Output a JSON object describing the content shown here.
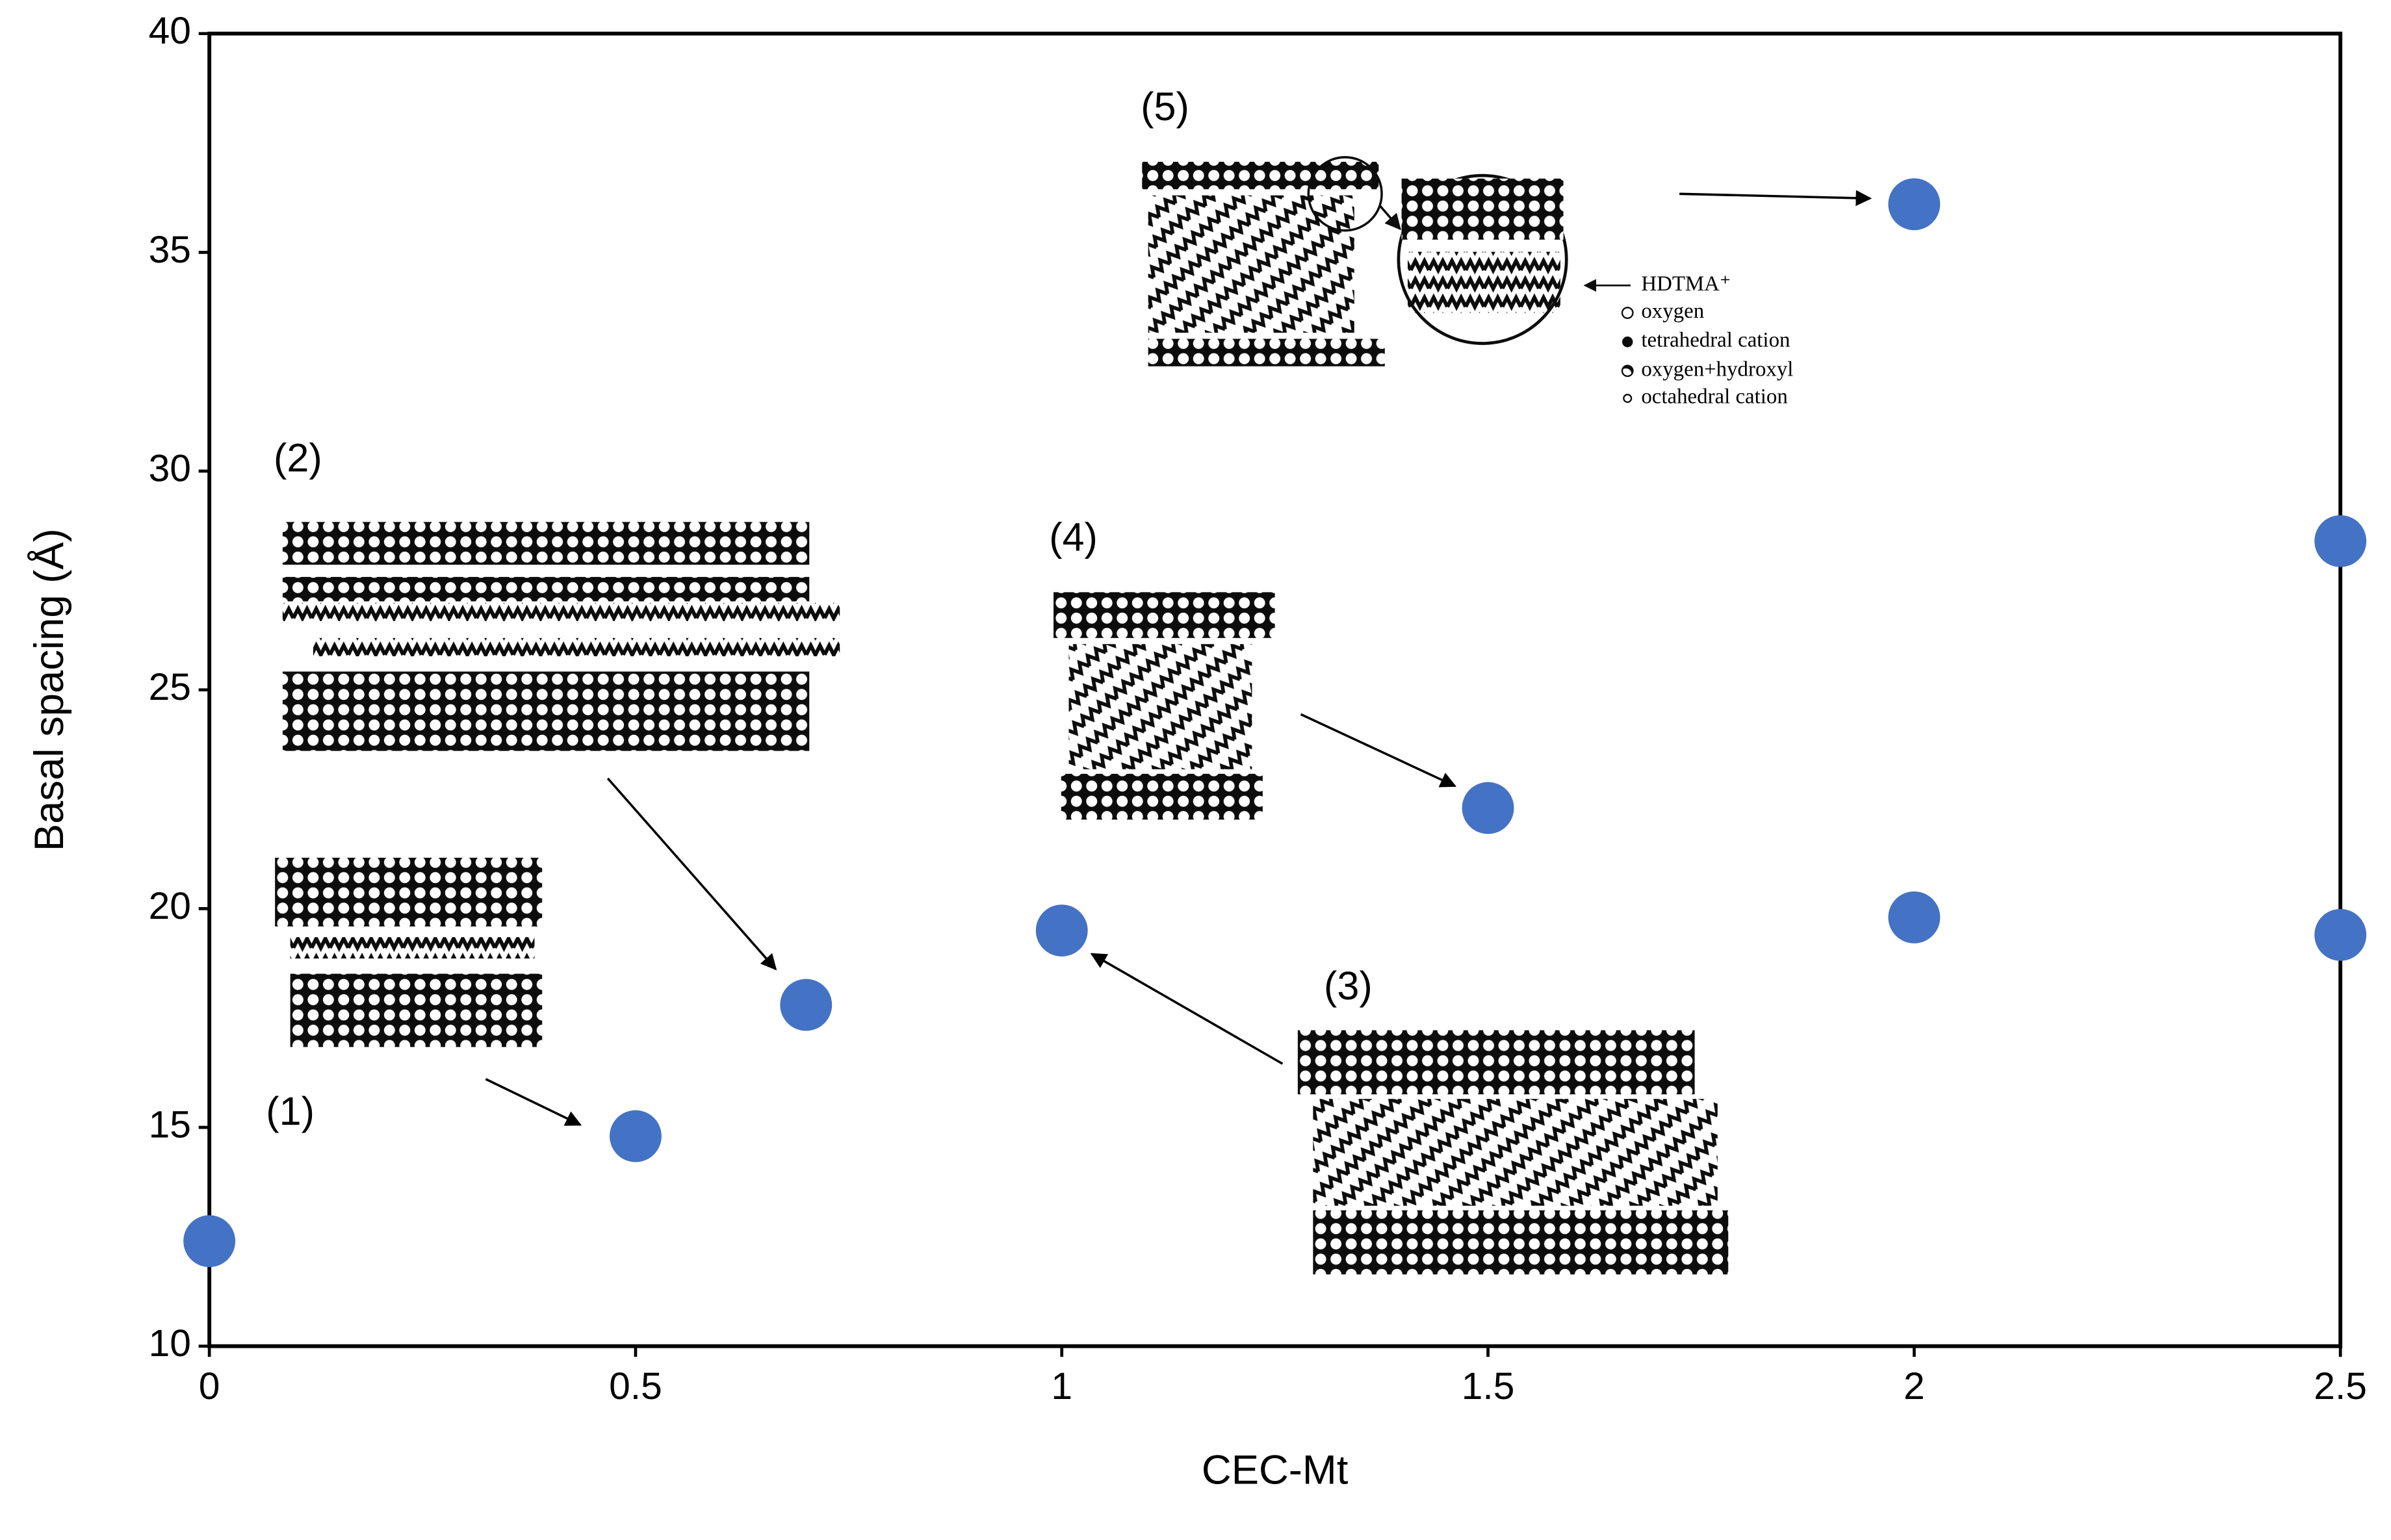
{
  "chart_data": {
    "type": "scatter",
    "xlabel": "CEC-Mt",
    "ylabel": "Basal spacing (Å)",
    "x": [
      0,
      0.5,
      0.7,
      1,
      1.5,
      2,
      2,
      2.5,
      2.5
    ],
    "values": [
      12.4,
      14.8,
      17.8,
      19.5,
      22.3,
      36.1,
      19.8,
      28.4,
      19.4
    ],
    "color": "#4472c4",
    "xlim": [
      0,
      2.5
    ],
    "xticks": [
      0,
      0.5,
      1,
      1.5,
      2,
      2.5
    ],
    "ylim": [
      10,
      40
    ],
    "yticks": [
      10,
      15,
      20,
      25,
      30,
      35,
      40
    ],
    "grid": false,
    "annotations": [
      "(1)",
      "(2)",
      "(3)",
      "(4)",
      "(5)"
    ],
    "inset_legend": [
      "HDTMA⁺",
      "oxygen",
      "tetrahedral cation",
      "oxygen+hydroxyl",
      "octahedral cation"
    ]
  }
}
